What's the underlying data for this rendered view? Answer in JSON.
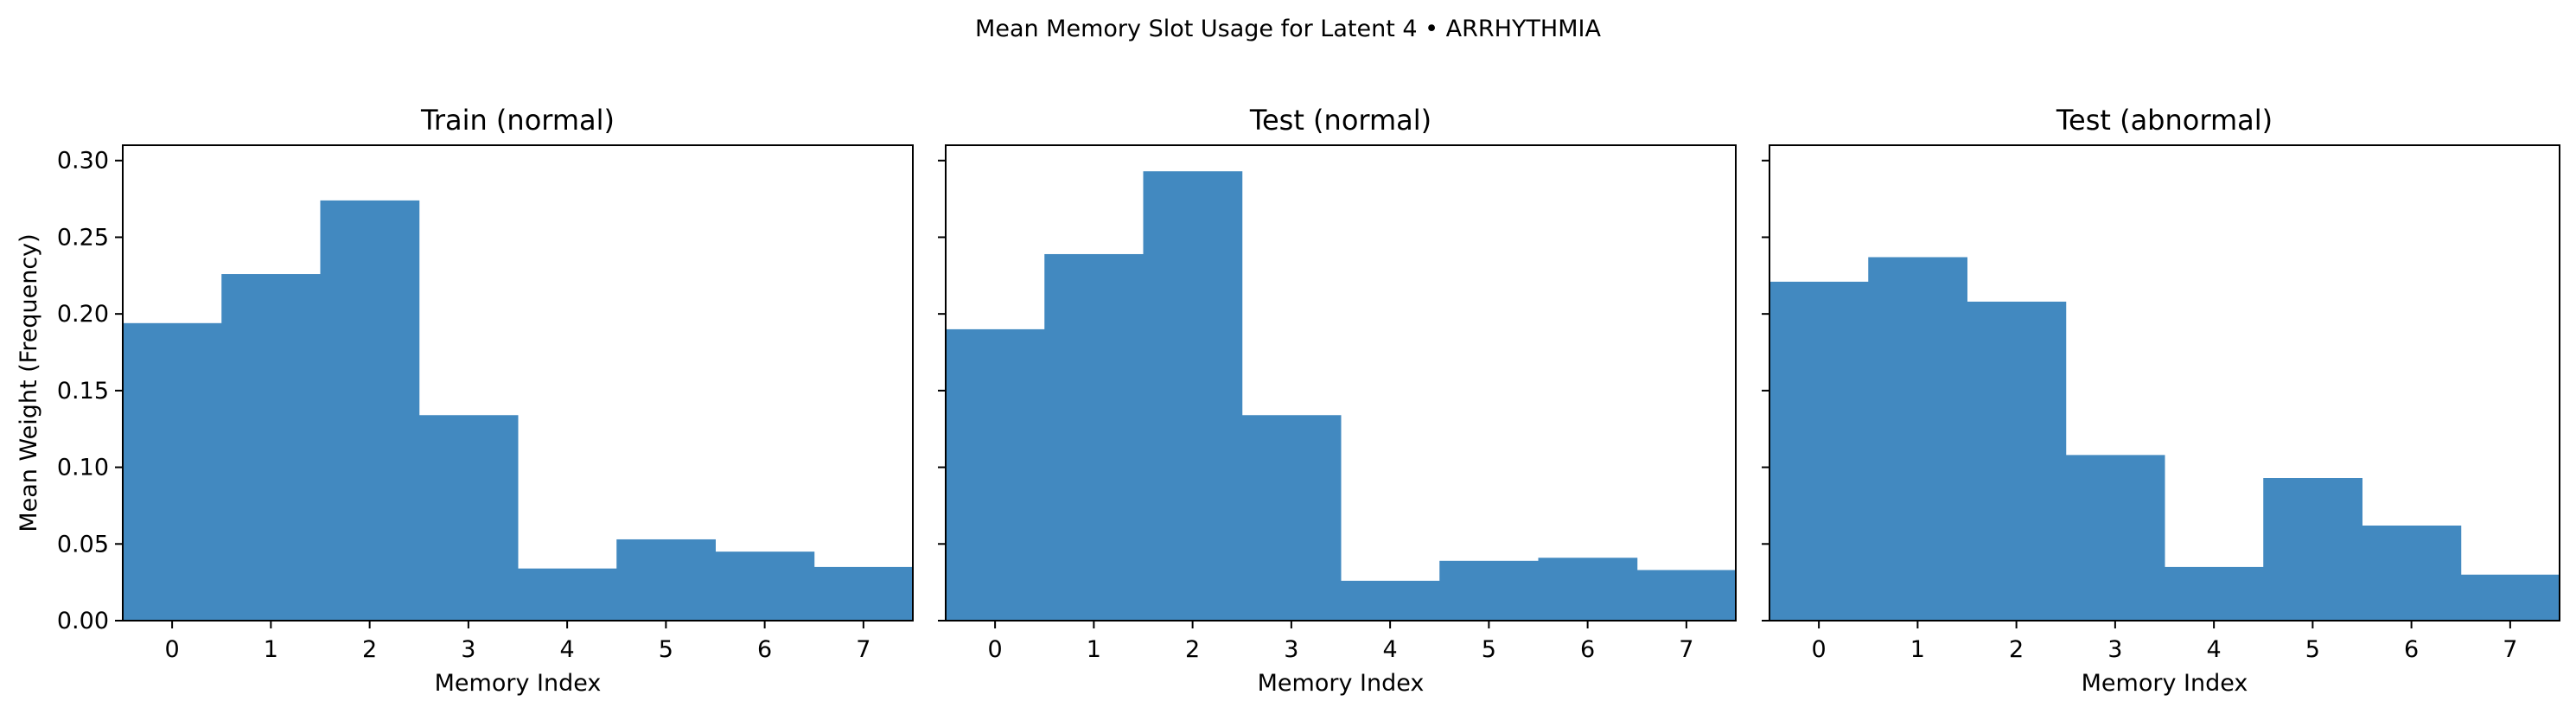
{
  "suptitle": "Mean Memory Slot Usage for Latent 4 • ARRHYTHMIA",
  "colors": {
    "bar": "#4289c0",
    "axis": "#000000",
    "background": "#ffffff"
  },
  "chart_data": [
    {
      "type": "bar",
      "title": "Train (normal)",
      "xlabel": "Memory Index",
      "ylabel": "Mean Weight (Frequency)",
      "categories": [
        "0",
        "1",
        "2",
        "3",
        "4",
        "5",
        "6",
        "7"
      ],
      "values": [
        0.194,
        0.226,
        0.274,
        0.134,
        0.034,
        0.053,
        0.045,
        0.035
      ],
      "ylim": [
        0,
        0.31
      ],
      "yticks": [
        "0.00",
        "0.05",
        "0.10",
        "0.15",
        "0.20",
        "0.25",
        "0.30"
      ],
      "grid": false
    },
    {
      "type": "bar",
      "title": "Test (normal)",
      "xlabel": "Memory Index",
      "ylabel": "",
      "categories": [
        "0",
        "1",
        "2",
        "3",
        "4",
        "5",
        "6",
        "7"
      ],
      "values": [
        0.19,
        0.239,
        0.293,
        0.134,
        0.026,
        0.039,
        0.041,
        0.033
      ],
      "ylim": [
        0,
        0.31
      ],
      "yticks": [],
      "grid": false
    },
    {
      "type": "bar",
      "title": "Test (abnormal)",
      "xlabel": "Memory Index",
      "ylabel": "",
      "categories": [
        "0",
        "1",
        "2",
        "3",
        "4",
        "5",
        "6",
        "7"
      ],
      "values": [
        0.221,
        0.237,
        0.208,
        0.108,
        0.035,
        0.093,
        0.062,
        0.03
      ],
      "ylim": [
        0,
        0.31
      ],
      "yticks": [],
      "grid": false
    }
  ]
}
